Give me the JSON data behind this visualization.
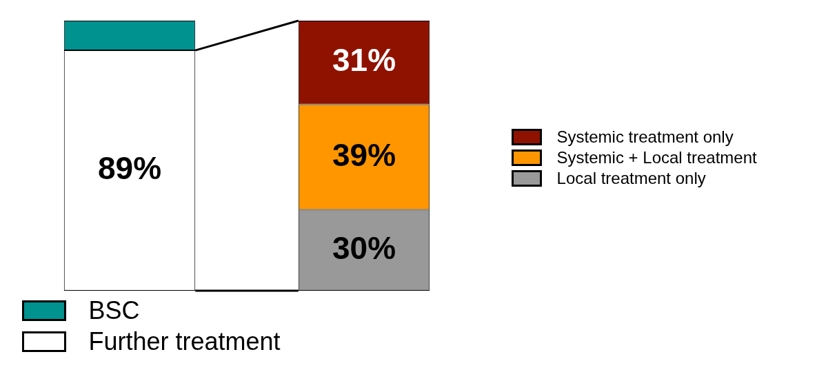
{
  "chart_data": {
    "type": "bar",
    "stacked": true,
    "categories": [
      null,
      null
    ],
    "legend": "right",
    "series": [
      {
        "name": "Further treatment",
        "color": "#ffffff",
        "values": [
          89,
          null
        ],
        "value_labels": [
          "89%",
          null
        ]
      },
      {
        "name": "BSC",
        "color": "#00928f",
        "values": [
          11,
          null
        ],
        "value_labels": [
          null,
          null
        ]
      },
      {
        "name": "Local treatment only",
        "color": "#999999",
        "values": [
          null,
          30
        ],
        "value_labels": [
          null,
          "30%"
        ]
      },
      {
        "name": "Systemic + Local treatment",
        "color": "#ff9600",
        "values": [
          null,
          39
        ],
        "value_labels": [
          null,
          "39%"
        ]
      },
      {
        "name": "Systemic treatment only",
        "color": "#8f1200",
        "values": [
          null,
          31
        ],
        "value_labels": [
          null,
          "31%"
        ]
      }
    ]
  }
}
